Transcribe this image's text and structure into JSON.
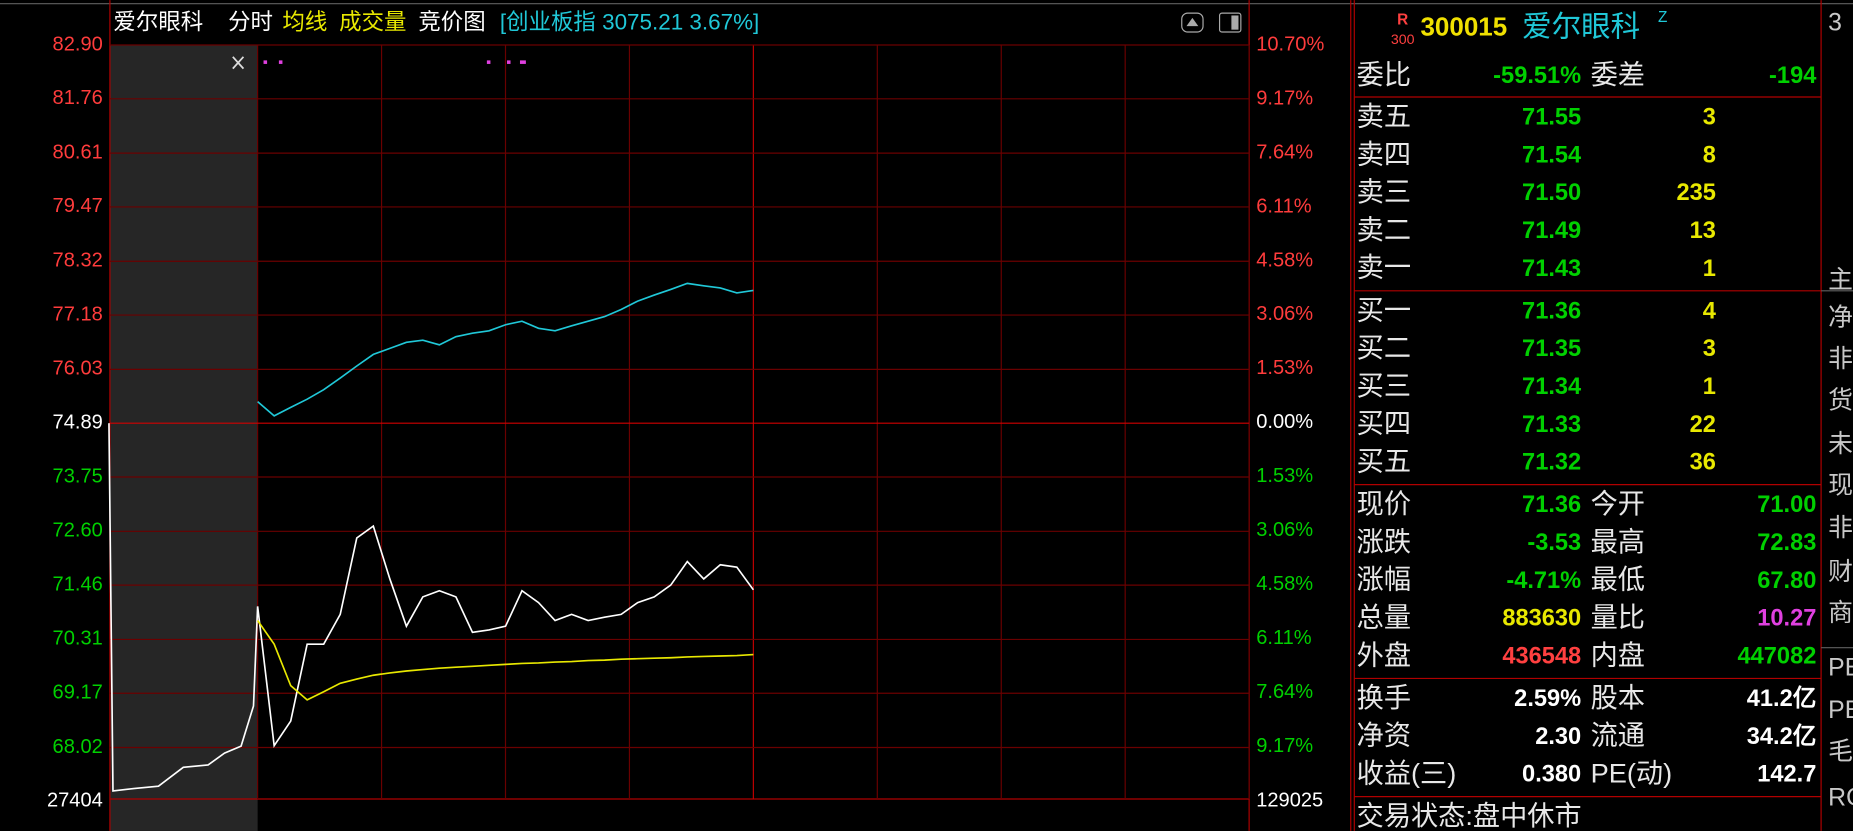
{
  "header": {
    "name": "爱尔眼科",
    "tab_time": "分时",
    "tab_volume": "成交量",
    "tab_auction": "竞价图",
    "index_info": "[创业板指 3075.21 3.67%]"
  },
  "chart_data": {
    "type": "line",
    "ylim": [
      66.93,
      82.9
    ],
    "yticks": [
      {
        "value": 82.9,
        "label": "82.90"
      },
      {
        "value": 81.76,
        "label": "81.76"
      },
      {
        "value": 80.61,
        "label": "80.61"
      },
      {
        "value": 79.47,
        "label": "79.47"
      },
      {
        "value": 78.32,
        "label": "78.32"
      },
      {
        "value": 77.18,
        "label": "77.18"
      },
      {
        "value": 76.03,
        "label": "76.03"
      },
      {
        "value": 74.89,
        "label": "74.89"
      },
      {
        "value": 73.75,
        "label": "73.75"
      },
      {
        "value": 72.6,
        "label": "72.60"
      },
      {
        "value": 71.46,
        "label": "71.46"
      },
      {
        "value": 70.31,
        "label": "70.31"
      },
      {
        "value": 69.17,
        "label": "69.17"
      },
      {
        "value": 68.02,
        "label": "68.02"
      }
    ],
    "y2lim": [
      -10.65,
      10.7
    ],
    "y2ticks": [
      {
        "value": 10.7,
        "label": "10.70%"
      },
      {
        "value": 9.17,
        "label": "9.17%"
      },
      {
        "value": 7.64,
        "label": "7.64%"
      },
      {
        "value": 6.11,
        "label": "6.11%"
      },
      {
        "value": 4.58,
        "label": "4.58%"
      },
      {
        "value": 3.06,
        "label": "3.06%"
      },
      {
        "value": 1.53,
        "label": "1.53%"
      },
      {
        "value": 0,
        "label": "0.00%"
      },
      {
        "value": -1.53,
        "label": "1.53%"
      },
      {
        "value": -3.06,
        "label": "3.06%"
      },
      {
        "value": -4.58,
        "label": "4.58%"
      },
      {
        "value": -6.11,
        "label": "6.11%"
      },
      {
        "value": -7.64,
        "label": "7.64%"
      },
      {
        "value": -9.17,
        "label": "9.17%"
      }
    ],
    "tick_colors": {
      "up": "#ff3c3c",
      "flat": "#ffffff",
      "down": "#00d000"
    },
    "grid": true,
    "volume_left": 27404,
    "volume_right": 129025,
    "x": [
      -36,
      -35,
      -30,
      -24,
      -18,
      -12,
      -8,
      -4,
      -1,
      0,
      4,
      8,
      12,
      16,
      20,
      24,
      28,
      32,
      36,
      40,
      44,
      48,
      52,
      56,
      60,
      64,
      68,
      72,
      76,
      80,
      84,
      88,
      92,
      96,
      100,
      104,
      108,
      112,
      116,
      120
    ],
    "series": [
      {
        "color": "#ffffff",
        "values": [
          74.89,
          67.1,
          67.15,
          67.2,
          67.6,
          67.65,
          67.9,
          68.05,
          68.9,
          71.01,
          68.06,
          68.58,
          70.21,
          70.21,
          70.84,
          72.46,
          72.71,
          71.59,
          70.59,
          71.21,
          71.34,
          71.21,
          70.46,
          70.51,
          70.59,
          71.34,
          71.09,
          70.71,
          70.84,
          70.71,
          70.78,
          70.84,
          71.09,
          71.21,
          71.46,
          71.96,
          71.59,
          71.89,
          71.84,
          71.36
        ]
      },
      {
        "name": "均线",
        "color": "#e8e800",
        "values": [
          null,
          null,
          null,
          null,
          null,
          null,
          null,
          null,
          null,
          70.71,
          70.21,
          69.33,
          69.03,
          69.2,
          69.38,
          69.47,
          69.55,
          69.6,
          69.64,
          69.67,
          69.7,
          69.72,
          69.74,
          69.76,
          69.78,
          69.8,
          69.81,
          69.83,
          69.84,
          69.86,
          69.87,
          69.89,
          69.9,
          69.91,
          69.92,
          69.94,
          69.95,
          69.96,
          69.97,
          69.99
        ]
      },
      {
        "color": "#20c8d8",
        "axis": "y2",
        "values": [
          null,
          null,
          null,
          null,
          null,
          null,
          null,
          null,
          null,
          0.6,
          0.2,
          0.44,
          0.67,
          0.94,
          1.27,
          1.61,
          1.94,
          2.11,
          2.28,
          2.34,
          2.21,
          2.44,
          2.54,
          2.61,
          2.78,
          2.88,
          2.68,
          2.61,
          2.75,
          2.88,
          3.01,
          3.21,
          3.45,
          3.62,
          3.78,
          3.95,
          3.88,
          3.82,
          3.68,
          3.75
        ]
      }
    ]
  },
  "quote": {
    "badge_top": "R",
    "badge_bottom": "300",
    "code": "300015",
    "name": "爱尔眼科",
    "mark": "Z",
    "balance": [
      "委比",
      "-59.51%",
      "委差",
      "-194"
    ],
    "asks": [
      [
        "卖五",
        "71.55",
        "3"
      ],
      [
        "卖四",
        "71.54",
        "8"
      ],
      [
        "卖三",
        "71.50",
        "235"
      ],
      [
        "卖二",
        "71.49",
        "13"
      ],
      [
        "卖一",
        "71.43",
        "1"
      ]
    ],
    "bids": [
      [
        "买一",
        "71.36",
        "4"
      ],
      [
        "买二",
        "71.35",
        "3"
      ],
      [
        "买三",
        "71.34",
        "1"
      ],
      [
        "买四",
        "71.33",
        "22"
      ],
      [
        "买五",
        "71.32",
        "36"
      ]
    ],
    "stats": [
      [
        "现价",
        "71.36",
        "今开",
        "71.00"
      ],
      [
        "涨跌",
        "-3.53",
        "最高",
        "72.83"
      ],
      [
        "涨幅",
        "-4.71%",
        "最低",
        "67.80"
      ],
      [
        "总量",
        "883630",
        "量比",
        "10.27"
      ],
      [
        "外盘",
        "436548",
        "内盘",
        "447082"
      ]
    ],
    "fundamentals": [
      [
        "换手",
        "2.59%",
        "股本",
        "41.2亿"
      ],
      [
        "净资",
        "2.30",
        "流通",
        "34.2亿"
      ],
      [
        "收益(三)",
        "0.380",
        "PE(动)",
        "142.7"
      ]
    ],
    "status": "交易状态:盘中休市"
  },
  "side_strip": [
    "3",
    "主",
    "净",
    "非",
    "货",
    "未",
    "现",
    "非",
    "财",
    "商",
    "PE",
    "PE",
    "毛",
    "RO"
  ]
}
